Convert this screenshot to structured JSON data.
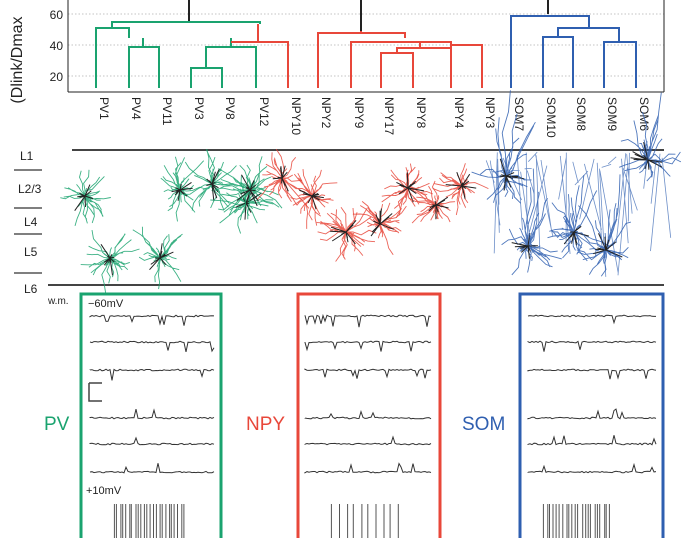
{
  "dendrogram": {
    "ylabel": "(Dlink/Dmax",
    "yticks": [
      "60",
      "40",
      "20"
    ],
    "leaves": [
      "PV1",
      "PV4",
      "PV11",
      "PV3",
      "PV8",
      "PV12",
      "NPY10",
      "NPY2",
      "NPY9",
      "NPY17",
      "NPY8",
      "NPY4",
      "NPY3",
      "SOM7",
      "SOM10",
      "SOM8",
      "SOM9",
      "SOM6"
    ],
    "colors": {
      "pv": "#1aa36f",
      "npy": "#e8473a",
      "som": "#2f5fb0"
    }
  },
  "layers": {
    "labels": [
      "L1",
      "L2/3",
      "L4",
      "L5",
      "L6"
    ],
    "wm": "w.m."
  },
  "traces": {
    "top_voltage": "−60mV",
    "bottom_voltage": "+10mV"
  },
  "groups": {
    "pv": "PV",
    "npy": "NPY",
    "som": "SOM"
  }
}
